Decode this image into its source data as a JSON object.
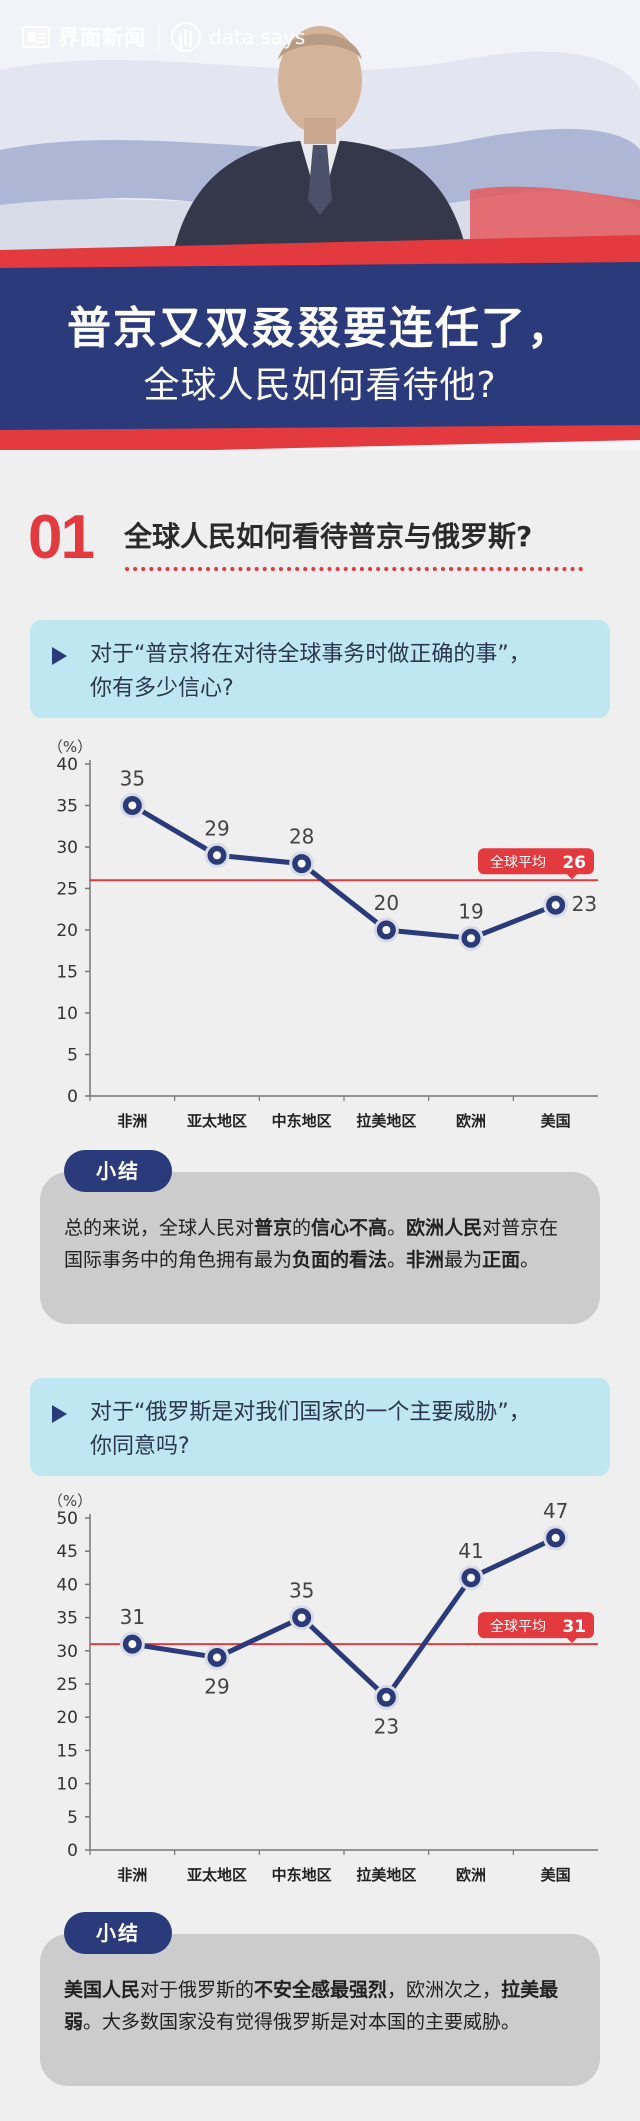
{
  "header": {
    "brand": "界面新闻",
    "partner": "data says",
    "title_line1": "普京又双叒叕要连任了，",
    "title_line2": "全球人民如何看待他?"
  },
  "section": {
    "number": "01",
    "title": "全球人民如何看待普京与俄罗斯?"
  },
  "question1": {
    "line1": "对于“普京将在对待全球事务时做正确的事”，",
    "line2": "你有多少信心?"
  },
  "summary1": {
    "tag": "小结",
    "parts": [
      {
        "t": "总的来说，全球人民对",
        "b": false
      },
      {
        "t": "普京",
        "b": true
      },
      {
        "t": "的",
        "b": false
      },
      {
        "t": "信心不高",
        "b": true
      },
      {
        "t": "。",
        "b": false
      },
      {
        "t": "欧洲人民",
        "b": true
      },
      {
        "t": "对普京在国际事务中的角色拥有最为",
        "b": false
      },
      {
        "t": "负面的看法",
        "b": true
      },
      {
        "t": "。",
        "b": false
      },
      {
        "t": "非洲",
        "b": true
      },
      {
        "t": "最为",
        "b": false
      },
      {
        "t": "正面",
        "b": true
      },
      {
        "t": "。",
        "b": false
      }
    ]
  },
  "question2": {
    "line1": "对于“俄罗斯是对我们国家的一个主要威胁”，",
    "line2": "你同意吗?"
  },
  "summary2": {
    "tag": "小结",
    "parts": [
      {
        "t": "美国人民",
        "b": true
      },
      {
        "t": "对于俄罗斯的",
        "b": false
      },
      {
        "t": "不安全感最强烈",
        "b": true
      },
      {
        "t": "，欧洲次之，",
        "b": false
      },
      {
        "t": "拉美最弱",
        "b": true
      },
      {
        "t": "。大多数国家没有觉得俄罗斯是对本国的主要威胁。",
        "b": false
      }
    ]
  },
  "colors": {
    "navy": "#2b3a7a",
    "red": "#e23a3f",
    "light_blue": "#bfe7f2"
  },
  "chart_data": [
    {
      "type": "line",
      "unit_label": "（%）",
      "categories": [
        "非洲",
        "亚太地区",
        "中东地区",
        "拉美地区",
        "欧洲",
        "美国"
      ],
      "values": [
        35,
        29,
        28,
        20,
        19,
        23
      ],
      "ylim": [
        0,
        40
      ],
      "yticks": [
        0,
        5,
        10,
        15,
        20,
        25,
        30,
        35,
        40
      ],
      "reference": {
        "label": "全球平均",
        "value": 26
      },
      "label_pos": [
        "above",
        "above",
        "above",
        "above",
        "above",
        "right"
      ]
    },
    {
      "type": "line",
      "unit_label": "（%）",
      "categories": [
        "非洲",
        "亚太地区",
        "中东地区",
        "拉美地区",
        "欧洲",
        "美国"
      ],
      "values": [
        31,
        29,
        35,
        23,
        41,
        47
      ],
      "ylim": [
        0,
        50
      ],
      "yticks": [
        0,
        5,
        10,
        15,
        20,
        25,
        30,
        35,
        40,
        45,
        50
      ],
      "reference": {
        "label": "全球平均",
        "value": 31
      },
      "label_pos": [
        "above",
        "below",
        "above",
        "below",
        "above",
        "above"
      ]
    }
  ]
}
